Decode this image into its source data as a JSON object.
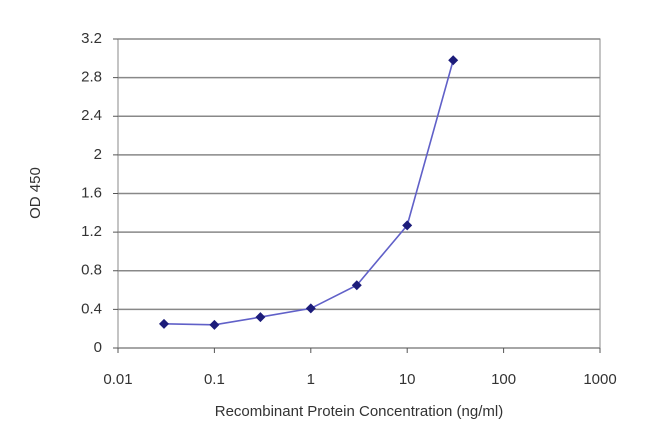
{
  "chart_data": {
    "type": "line",
    "x_label": "Recombinant Protein Concentration (ng/ml)",
    "y_label": "OD 450",
    "x": [
      0.03,
      0.1,
      0.3,
      1,
      3,
      10,
      30
    ],
    "values": [
      0.25,
      0.24,
      0.32,
      0.41,
      0.65,
      1.27,
      2.98
    ],
    "color": "#6060c8",
    "marker_color": "#1c1c7a",
    "x_log": true,
    "xlim": [
      0.01,
      1000
    ],
    "xticks": [
      0.01,
      0.1,
      1,
      10,
      100,
      1000
    ],
    "ylim": [
      0,
      3.2
    ],
    "yticks": [
      0,
      0.4,
      0.8,
      1.2,
      1.6,
      2,
      2.4,
      2.8,
      3.2
    ],
    "grid": true
  }
}
